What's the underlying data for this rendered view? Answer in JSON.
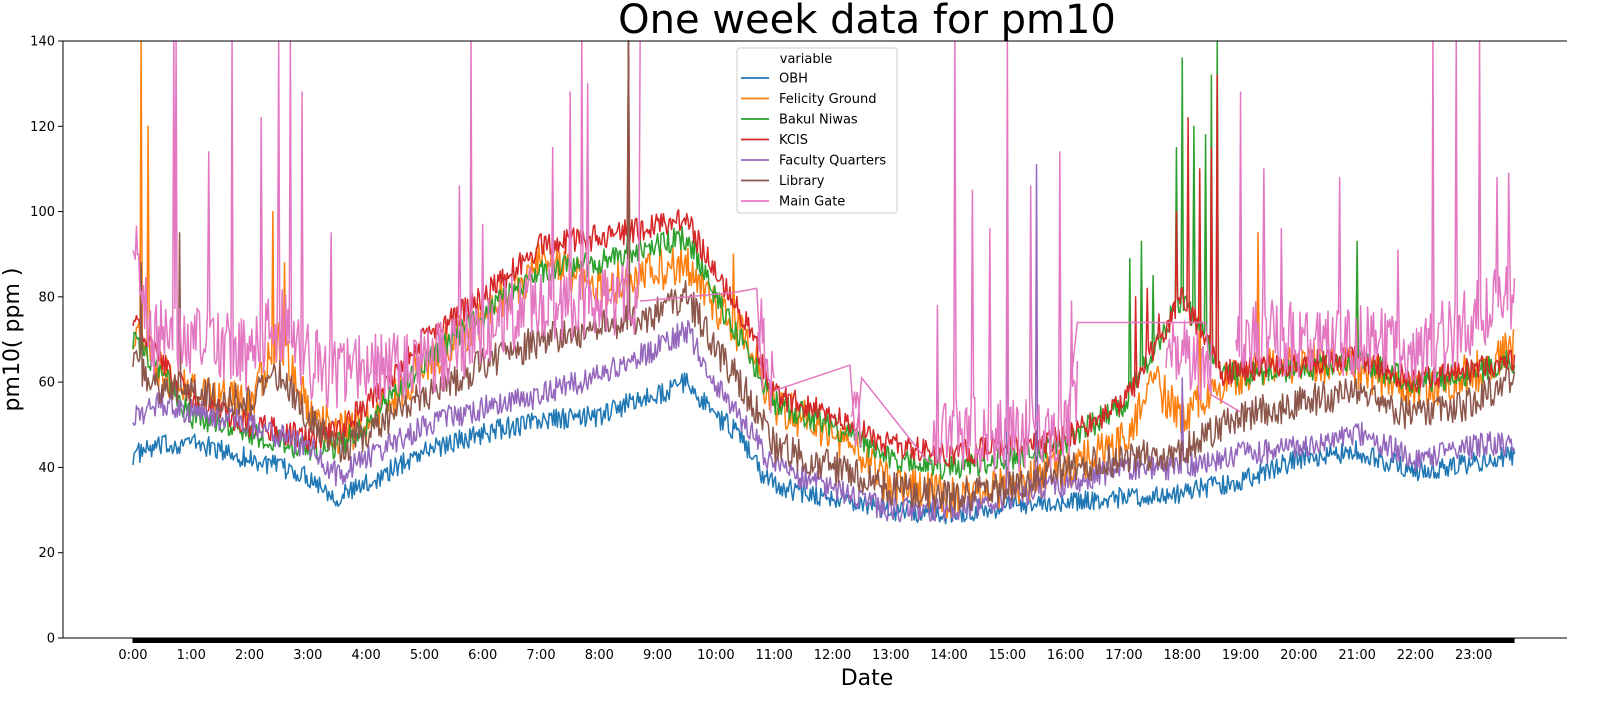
{
  "chart_data": {
    "type": "line",
    "title": "One week data for pm10",
    "xlabel": "Date",
    "ylabel": "pm10( ppm )",
    "ylim": [
      0,
      140
    ],
    "y_ticks": [
      0,
      20,
      40,
      60,
      80,
      100,
      120,
      140
    ],
    "x_ticks": [
      "0:00",
      "1:00",
      "2:00",
      "3:00",
      "4:00",
      "5:00",
      "6:00",
      "7:00",
      "8:00",
      "9:00",
      "10:00",
      "11:00",
      "12:00",
      "13:00",
      "14:00",
      "15:00",
      "16:00",
      "17:00",
      "18:00",
      "19:00",
      "20:00",
      "21:00",
      "22:00",
      "23:00"
    ],
    "xlim_hours": [
      -1.2,
      24.6
    ],
    "x_range_hours": [
      0,
      23.7
    ],
    "legend": {
      "title": "variable",
      "position": "top-center"
    },
    "series": [
      {
        "name": "OBH",
        "color": "#1f77b4",
        "noise": 2.5,
        "spikes": [],
        "points": [
          [
            0,
            43
          ],
          [
            0.5,
            45
          ],
          [
            1,
            46
          ],
          [
            2,
            42
          ],
          [
            3,
            38
          ],
          [
            3.5,
            33
          ],
          [
            4,
            36
          ],
          [
            5,
            44
          ],
          [
            6,
            48
          ],
          [
            7,
            51
          ],
          [
            8,
            52
          ],
          [
            8.5,
            55
          ],
          [
            9,
            57
          ],
          [
            9.5,
            60
          ],
          [
            10,
            52
          ],
          [
            10.4,
            48
          ],
          [
            10.8,
            38
          ],
          [
            11.2,
            35
          ],
          [
            12,
            33
          ],
          [
            13,
            30
          ],
          [
            14,
            29
          ],
          [
            15,
            31
          ],
          [
            16,
            32
          ],
          [
            17,
            33
          ],
          [
            18,
            34
          ],
          [
            19,
            37
          ],
          [
            20,
            42
          ],
          [
            21,
            44
          ],
          [
            22,
            39
          ],
          [
            23,
            41
          ],
          [
            23.7,
            43
          ]
        ]
      },
      {
        "name": "Felicity Ground",
        "color": "#ff7f0e",
        "noise": 5,
        "spikes": [
          [
            0.15,
            140
          ],
          [
            0.25,
            120
          ],
          [
            2.4,
            100
          ],
          [
            2.6,
            88
          ],
          [
            10.3,
            90
          ],
          [
            18.3,
            95
          ],
          [
            19.3,
            95
          ],
          [
            21,
            90
          ]
        ],
        "points": [
          [
            0,
            72
          ],
          [
            0.5,
            62
          ],
          [
            1,
            58
          ],
          [
            2,
            55
          ],
          [
            2.5,
            70
          ],
          [
            3,
            55
          ],
          [
            3.5,
            48
          ],
          [
            4,
            50
          ],
          [
            5,
            64
          ],
          [
            6,
            75
          ],
          [
            7,
            88
          ],
          [
            8,
            82
          ],
          [
            9,
            86
          ],
          [
            9.5,
            88
          ],
          [
            10,
            78
          ],
          [
            10.5,
            70
          ],
          [
            11,
            55
          ],
          [
            12,
            48
          ],
          [
            13,
            36
          ],
          [
            14,
            33
          ],
          [
            15,
            35
          ],
          [
            16,
            40
          ],
          [
            17,
            46
          ],
          [
            17.5,
            60
          ],
          [
            18,
            52
          ],
          [
            19,
            62
          ],
          [
            20,
            65
          ],
          [
            21,
            63
          ],
          [
            22,
            58
          ],
          [
            23,
            62
          ],
          [
            23.7,
            68
          ]
        ]
      },
      {
        "name": "Bakul Niwas",
        "color": "#2ca02c",
        "noise": 3,
        "spikes": [
          [
            8.5,
            140
          ],
          [
            17.1,
            89
          ],
          [
            17.3,
            93
          ],
          [
            17.5,
            85
          ],
          [
            17.9,
            115
          ],
          [
            18,
            136
          ],
          [
            18.2,
            120
          ],
          [
            18.4,
            118
          ],
          [
            18.5,
            132
          ],
          [
            18.6,
            140
          ],
          [
            21,
            93
          ]
        ],
        "points": [
          [
            0,
            70
          ],
          [
            0.5,
            62
          ],
          [
            1,
            52
          ],
          [
            2,
            48
          ],
          [
            3,
            44
          ],
          [
            3.5,
            45
          ],
          [
            4,
            50
          ],
          [
            5,
            65
          ],
          [
            6,
            76
          ],
          [
            7,
            86
          ],
          [
            8,
            88
          ],
          [
            9,
            92
          ],
          [
            9.5,
            94
          ],
          [
            10,
            80
          ],
          [
            10.5,
            68
          ],
          [
            11,
            55
          ],
          [
            12,
            50
          ],
          [
            13,
            42
          ],
          [
            14,
            40
          ],
          [
            15,
            42
          ],
          [
            16,
            46
          ],
          [
            17,
            55
          ],
          [
            18,
            80
          ],
          [
            18.7,
            62
          ],
          [
            19,
            62
          ],
          [
            20,
            63
          ],
          [
            21,
            65
          ],
          [
            22,
            60
          ],
          [
            23,
            62
          ],
          [
            23.7,
            65
          ]
        ]
      },
      {
        "name": "KCIS",
        "color": "#d62728",
        "noise": 3,
        "spikes": [
          [
            8.5,
            140
          ],
          [
            17.2,
            80
          ],
          [
            17.4,
            82
          ],
          [
            17.6,
            76
          ],
          [
            17.9,
            100
          ],
          [
            18.1,
            122
          ],
          [
            18.3,
            110
          ],
          [
            18.5,
            115
          ],
          [
            18.6,
            132
          ]
        ],
        "points": [
          [
            0,
            75
          ],
          [
            0.5,
            65
          ],
          [
            1,
            56
          ],
          [
            2,
            50
          ],
          [
            3,
            47
          ],
          [
            3.5,
            48
          ],
          [
            4,
            55
          ],
          [
            5,
            70
          ],
          [
            6,
            80
          ],
          [
            7,
            92
          ],
          [
            8,
            94
          ],
          [
            9,
            97
          ],
          [
            9.5,
            98
          ],
          [
            10,
            85
          ],
          [
            10.5,
            75
          ],
          [
            11,
            57
          ],
          [
            12,
            52
          ],
          [
            13,
            45
          ],
          [
            14,
            43
          ],
          [
            15,
            45
          ],
          [
            16,
            47
          ],
          [
            17,
            55
          ],
          [
            18,
            80
          ],
          [
            18.7,
            62
          ],
          [
            19,
            63
          ],
          [
            20,
            64
          ],
          [
            21,
            66
          ],
          [
            22,
            60
          ],
          [
            23,
            63
          ],
          [
            23.7,
            65
          ]
        ]
      },
      {
        "name": "Faculty Quarters",
        "color": "#9467bd",
        "noise": 3,
        "spikes": [
          [
            15,
            104
          ],
          [
            15.5,
            111
          ],
          [
            18,
            61
          ]
        ],
        "points": [
          [
            0,
            52
          ],
          [
            0.5,
            55
          ],
          [
            1,
            53
          ],
          [
            2,
            50
          ],
          [
            3,
            45
          ],
          [
            3.5,
            38
          ],
          [
            4,
            42
          ],
          [
            5,
            50
          ],
          [
            6,
            54
          ],
          [
            7,
            57
          ],
          [
            8,
            62
          ],
          [
            9,
            68
          ],
          [
            9.5,
            72
          ],
          [
            10,
            60
          ],
          [
            10.5,
            50
          ],
          [
            11,
            40
          ],
          [
            12,
            35
          ],
          [
            13,
            30
          ],
          [
            14,
            30
          ],
          [
            15,
            33
          ],
          [
            16,
            36
          ],
          [
            17,
            40
          ],
          [
            18,
            40
          ],
          [
            19,
            43
          ],
          [
            20,
            45
          ],
          [
            21,
            48
          ],
          [
            22,
            42
          ],
          [
            23,
            45
          ],
          [
            23.7,
            46
          ]
        ]
      },
      {
        "name": "Library",
        "color": "#8c564b",
        "noise": 4,
        "spikes": [
          [
            0.15,
            88
          ],
          [
            0.8,
            95
          ],
          [
            8.5,
            140
          ]
        ],
        "points": [
          [
            0,
            65
          ],
          [
            0.5,
            58
          ],
          [
            1,
            58
          ],
          [
            2,
            55
          ],
          [
            2.5,
            62
          ],
          [
            3,
            52
          ],
          [
            3.5,
            44
          ],
          [
            4,
            48
          ],
          [
            5,
            57
          ],
          [
            6,
            64
          ],
          [
            7,
            70
          ],
          [
            8,
            73
          ],
          [
            9,
            76
          ],
          [
            9.5,
            80
          ],
          [
            10,
            68
          ],
          [
            10.5,
            58
          ],
          [
            11,
            45
          ],
          [
            12,
            40
          ],
          [
            13,
            35
          ],
          [
            14,
            33
          ],
          [
            15,
            35
          ],
          [
            16,
            40
          ],
          [
            17,
            42
          ],
          [
            18,
            44
          ],
          [
            19,
            52
          ],
          [
            20,
            55
          ],
          [
            21,
            58
          ],
          [
            22,
            52
          ],
          [
            23,
            55
          ],
          [
            23.7,
            62
          ]
        ]
      },
      {
        "name": "Main Gate",
        "color": "#e377c2",
        "noise": 9,
        "gaps": [
          [
            8.7,
            10.7
          ],
          [
            11,
            12.3
          ],
          [
            12.5,
            13.7
          ],
          [
            16.2,
            17.7
          ],
          [
            18.5,
            18.9
          ]
        ],
        "spikes": [
          [
            0.1,
            90
          ],
          [
            0.7,
            140
          ],
          [
            0.75,
            140
          ],
          [
            1.3,
            114
          ],
          [
            1.7,
            105
          ],
          [
            1.7,
            140
          ],
          [
            2.2,
            122
          ],
          [
            2.5,
            140
          ],
          [
            2.7,
            140
          ],
          [
            2.9,
            128
          ],
          [
            3.4,
            95
          ],
          [
            5.6,
            106
          ],
          [
            5.8,
            140
          ],
          [
            6,
            97
          ],
          [
            7.2,
            115
          ],
          [
            7.5,
            128
          ],
          [
            7.7,
            140
          ],
          [
            7.8,
            130
          ],
          [
            8.7,
            140
          ],
          [
            13.8,
            78
          ],
          [
            14.1,
            140
          ],
          [
            14.4,
            105
          ],
          [
            14.7,
            96
          ],
          [
            15,
            140
          ],
          [
            15.4,
            106
          ],
          [
            15.9,
            114
          ],
          [
            16.1,
            79
          ],
          [
            19,
            128
          ],
          [
            19.4,
            110
          ],
          [
            19.7,
            96
          ],
          [
            20.7,
            108
          ],
          [
            21.7,
            91
          ],
          [
            22.3,
            140
          ],
          [
            22.7,
            140
          ],
          [
            23.1,
            140
          ],
          [
            23.4,
            108
          ],
          [
            23.6,
            109
          ]
        ],
        "connectors": [
          [
            [
              8.7,
              79
            ],
            [
              10.3,
              81
            ],
            [
              10.7,
              82
            ],
            [
              10.8,
              58
            ]
          ],
          [
            [
              11,
              58
            ],
            [
              12.3,
              64
            ],
            [
              12.4,
              45
            ],
            [
              12.5,
              61
            ],
            [
              13.6,
              42
            ],
            [
              13.7,
              41
            ]
          ],
          [
            [
              16,
              48
            ],
            [
              16.2,
              74
            ],
            [
              17.7,
              74
            ],
            [
              18.4,
              74
            ],
            [
              18.5,
              57
            ],
            [
              19.0,
              53
            ]
          ]
        ],
        "points": [
          [
            0,
            93
          ],
          [
            0.3,
            70
          ],
          [
            0.6,
            72
          ],
          [
            1,
            70
          ],
          [
            1.5,
            68
          ],
          [
            2,
            66
          ],
          [
            2.5,
            74
          ],
          [
            3,
            65
          ],
          [
            3.5,
            62
          ],
          [
            4,
            62
          ],
          [
            5,
            64
          ],
          [
            6,
            72
          ],
          [
            7,
            80
          ],
          [
            7.5,
            78
          ],
          [
            8,
            78
          ],
          [
            8.5,
            80
          ],
          [
            8.7,
            80
          ],
          [
            10.7,
            76
          ],
          [
            11,
            58
          ],
          [
            12.3,
            52
          ],
          [
            12.5,
            50
          ],
          [
            13.7,
            44
          ],
          [
            14,
            48
          ],
          [
            15,
            48
          ],
          [
            16,
            48
          ],
          [
            16.2,
            60
          ],
          [
            17.7,
            70
          ],
          [
            18.5,
            62
          ],
          [
            18.9,
            70
          ],
          [
            19,
            72
          ],
          [
            20,
            70
          ],
          [
            21,
            70
          ],
          [
            22,
            66
          ],
          [
            23,
            75
          ],
          [
            23.7,
            80
          ]
        ]
      }
    ]
  }
}
